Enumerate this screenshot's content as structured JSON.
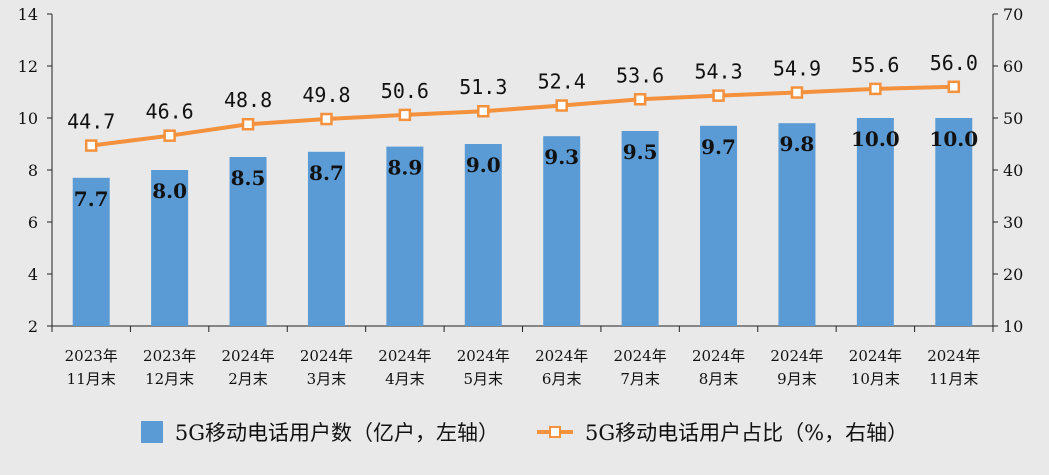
{
  "chart_data": {
    "type": "bar+line",
    "categories": [
      [
        "2023年",
        "11月末"
      ],
      [
        "2023年",
        "12月末"
      ],
      [
        "2024年",
        "2月末"
      ],
      [
        "2024年",
        "3月末"
      ],
      [
        "2024年",
        "4月末"
      ],
      [
        "2024年",
        "5月末"
      ],
      [
        "2024年",
        "6月末"
      ],
      [
        "2024年",
        "7月末"
      ],
      [
        "2024年",
        "8月末"
      ],
      [
        "2024年",
        "9月末"
      ],
      [
        "2024年",
        "10月末"
      ],
      [
        "2024年",
        "11月末"
      ]
    ],
    "series": [
      {
        "name": "5G移动电话用户数（亿户，左轴）",
        "type": "bar",
        "axis": "left",
        "color": "#5b9bd5",
        "values": [
          7.7,
          8.0,
          8.5,
          8.7,
          8.9,
          9.0,
          9.3,
          9.5,
          9.7,
          9.8,
          10.0,
          10.0
        ],
        "labels": [
          "7.7",
          "8.0",
          "8.5",
          "8.7",
          "8.9",
          "9.0",
          "9.3",
          "9.5",
          "9.7",
          "9.8",
          "10.0",
          "10.0"
        ]
      },
      {
        "name": "5G移动电话用户占比（%，右轴）",
        "type": "line",
        "axis": "right",
        "color": "#f4913d",
        "values": [
          44.7,
          46.6,
          48.8,
          49.8,
          50.6,
          51.3,
          52.4,
          53.6,
          54.3,
          54.9,
          55.6,
          56.0
        ],
        "labels": [
          "44.7",
          "46.6",
          "48.8",
          "49.8",
          "50.6",
          "51.3",
          "52.4",
          "53.6",
          "54.3",
          "54.9",
          "55.6",
          "56.0"
        ]
      }
    ],
    "y_left": {
      "min": 2,
      "max": 14,
      "ticks": [
        "2",
        "4",
        "6",
        "8",
        "10",
        "12",
        "14"
      ]
    },
    "y_right": {
      "min": 10,
      "max": 70,
      "ticks": [
        "10",
        "20",
        "30",
        "40",
        "50",
        "60",
        "70"
      ]
    },
    "grid": false,
    "legend_position": "bottom"
  }
}
